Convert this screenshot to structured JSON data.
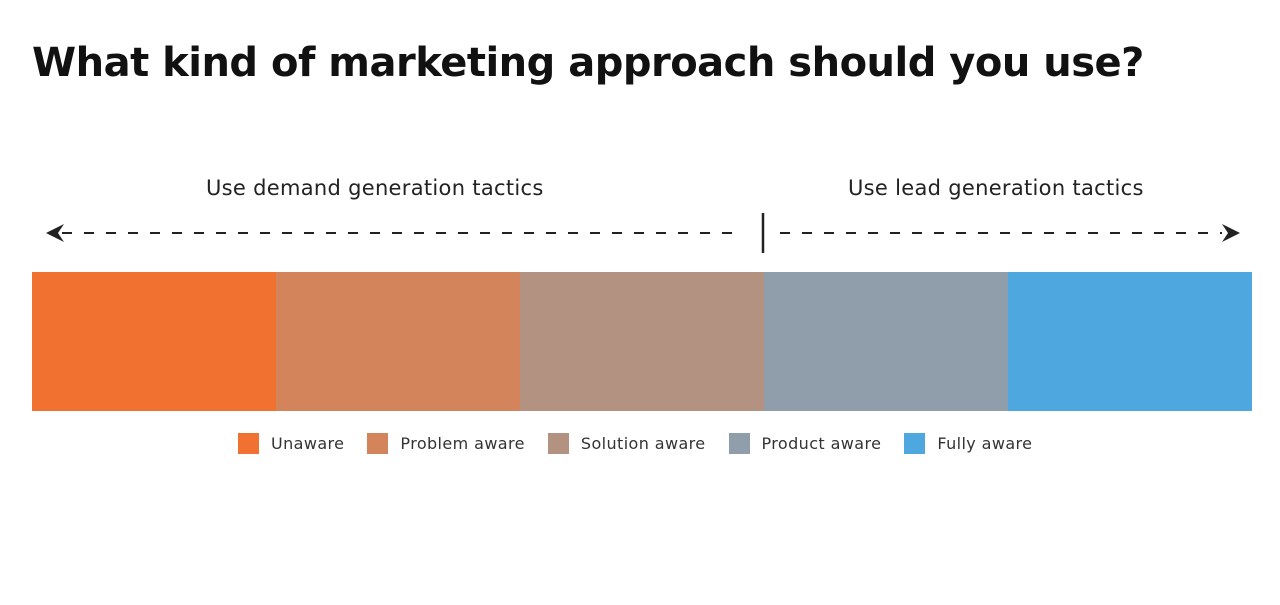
{
  "title": "What kind of marketing approach should you use?",
  "tactics": {
    "left": "Use demand generation tactics",
    "right": "Use lead generation tactics"
  },
  "stages": [
    {
      "label": "Unaware",
      "color": "#f07130"
    },
    {
      "label": "Problem aware",
      "color": "#d4845a"
    },
    {
      "label": "Solution aware",
      "color": "#b39282"
    },
    {
      "label": "Product aware",
      "color": "#909daa"
    },
    {
      "label": "Fully aware",
      "color": "#4ea7de"
    }
  ]
}
